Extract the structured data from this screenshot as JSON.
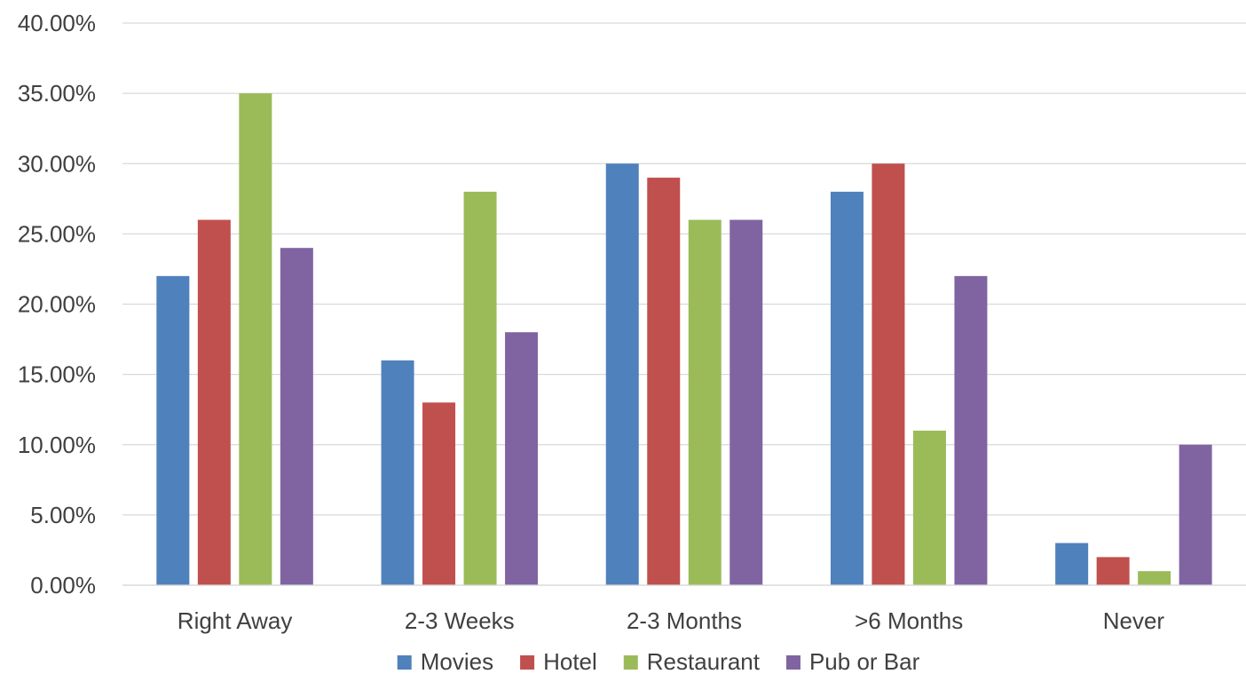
{
  "chart_data": {
    "type": "bar",
    "title": "",
    "xlabel": "",
    "ylabel": "",
    "categories": [
      "Right Away",
      "2-3 Weeks",
      "2-3 Months",
      ">6 Months",
      "Never"
    ],
    "series": [
      {
        "name": "Movies",
        "color": "#4F81BD",
        "values": [
          22,
          16,
          30,
          28,
          3
        ]
      },
      {
        "name": "Hotel",
        "color": "#C0504D",
        "values": [
          26,
          13,
          29,
          30,
          2
        ]
      },
      {
        "name": "Restaurant",
        "color": "#9BBB59",
        "values": [
          35,
          28,
          26,
          11,
          1
        ]
      },
      {
        "name": "Pub or Bar",
        "color": "#8064A2",
        "values": [
          24,
          18,
          26,
          22,
          10
        ]
      }
    ],
    "ylim": [
      0,
      40
    ],
    "y_ticks": [
      "0.00%",
      "5.00%",
      "10.00%",
      "15.00%",
      "20.00%",
      "25.00%",
      "30.00%",
      "35.00%",
      "40.00%"
    ],
    "y_unit": "percent",
    "grid": true,
    "legend_position": "bottom"
  }
}
